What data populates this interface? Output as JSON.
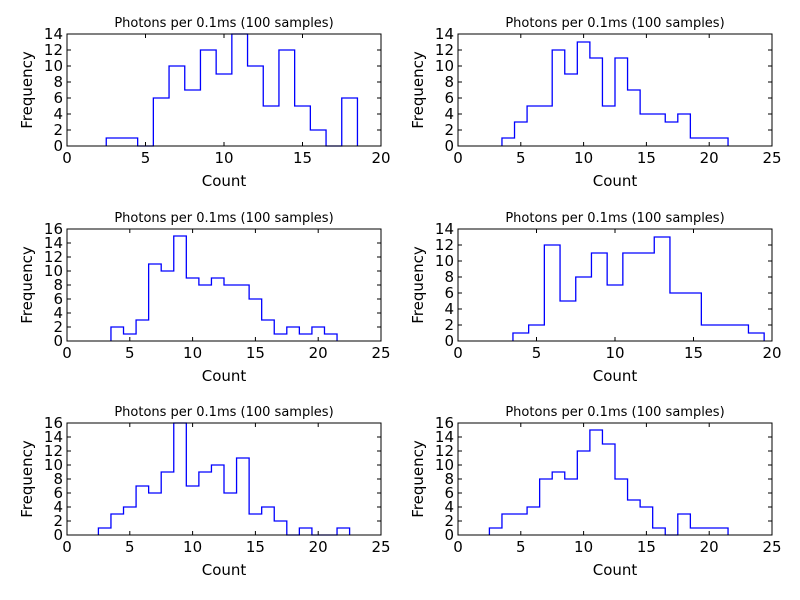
{
  "chart_data": [
    {
      "type": "histogram",
      "title": "Photons per 0.1ms (100 samples)",
      "xlabel": "Count",
      "ylabel": "Frequency",
      "xlim": [
        0,
        20
      ],
      "ylim": [
        0,
        14
      ],
      "xticks": [
        0,
        5,
        10,
        15,
        20
      ],
      "yticks": [
        0,
        2,
        4,
        6,
        8,
        10,
        12,
        14
      ],
      "bin_edges": [
        2.5,
        3.5,
        4.5,
        5.5,
        6.5,
        7.5,
        8.5,
        9.5,
        10.5,
        11.5,
        12.5,
        13.5,
        14.5,
        15.5,
        16.5,
        17.5,
        18.5
      ],
      "counts": [
        1,
        1,
        0,
        6,
        10,
        7,
        12,
        9,
        14,
        10,
        5,
        12,
        5,
        2,
        0,
        6
      ]
    },
    {
      "type": "histogram",
      "title": "Photons per 0.1ms (100 samples)",
      "xlabel": "Count",
      "ylabel": "Frequency",
      "xlim": [
        0,
        25
      ],
      "ylim": [
        0,
        14
      ],
      "xticks": [
        0,
        5,
        10,
        15,
        20,
        25
      ],
      "yticks": [
        0,
        2,
        4,
        6,
        8,
        10,
        12,
        14
      ],
      "bin_edges": [
        3.5,
        4.5,
        5.5,
        6.5,
        7.5,
        8.5,
        9.5,
        10.5,
        11.5,
        12.5,
        13.5,
        14.5,
        15.5,
        16.5,
        17.5,
        18.5,
        19.5,
        20.5,
        21.5
      ],
      "counts": [
        1,
        3,
        5,
        5,
        12,
        9,
        13,
        11,
        5,
        11,
        7,
        4,
        4,
        3,
        4,
        1,
        1,
        1
      ]
    },
    {
      "type": "histogram",
      "title": "Photons per 0.1ms (100 samples)",
      "xlabel": "Count",
      "ylabel": "Frequency",
      "xlim": [
        0,
        25
      ],
      "ylim": [
        0,
        16
      ],
      "xticks": [
        0,
        5,
        10,
        15,
        20,
        25
      ],
      "yticks": [
        0,
        2,
        4,
        6,
        8,
        10,
        12,
        14,
        16
      ],
      "bin_edges": [
        3.5,
        4.5,
        5.5,
        6.5,
        7.5,
        8.5,
        9.5,
        10.5,
        11.5,
        12.5,
        13.5,
        14.5,
        15.5,
        16.5,
        17.5,
        18.5,
        19.5,
        20.5,
        21.5
      ],
      "counts": [
        2,
        1,
        3,
        11,
        10,
        15,
        9,
        8,
        9,
        8,
        8,
        6,
        3,
        1,
        2,
        1,
        2,
        1
      ]
    },
    {
      "type": "histogram",
      "title": "Photons per 0.1ms (100 samples)",
      "xlabel": "Count",
      "ylabel": "Frequency",
      "xlim": [
        0,
        20
      ],
      "ylim": [
        0,
        14
      ],
      "xticks": [
        0,
        5,
        10,
        15,
        20
      ],
      "yticks": [
        0,
        2,
        4,
        6,
        8,
        10,
        12,
        14
      ],
      "bin_edges": [
        3.5,
        4.5,
        5.5,
        6.5,
        7.5,
        8.5,
        9.5,
        10.5,
        11.5,
        12.5,
        13.5,
        14.5,
        15.5,
        16.5,
        17.5,
        18.5,
        19.5
      ],
      "counts": [
        1,
        2,
        12,
        5,
        8,
        11,
        7,
        11,
        11,
        13,
        6,
        6,
        2,
        2,
        2,
        1
      ]
    },
    {
      "type": "histogram",
      "title": "Photons per 0.1ms (100 samples)",
      "xlabel": "Count",
      "ylabel": "Frequency",
      "xlim": [
        0,
        25
      ],
      "ylim": [
        0,
        16
      ],
      "xticks": [
        0,
        5,
        10,
        15,
        20,
        25
      ],
      "yticks": [
        0,
        2,
        4,
        6,
        8,
        10,
        12,
        14,
        16
      ],
      "bin_edges": [
        2.5,
        3.5,
        4.5,
        5.5,
        6.5,
        7.5,
        8.5,
        9.5,
        10.5,
        11.5,
        12.5,
        13.5,
        14.5,
        15.5,
        16.5,
        17.5,
        18.5,
        19.5,
        20.5,
        21.5,
        22.5
      ],
      "counts": [
        1,
        3,
        4,
        7,
        6,
        9,
        16,
        7,
        9,
        10,
        6,
        11,
        3,
        4,
        2,
        0,
        1,
        0,
        0,
        1
      ]
    },
    {
      "type": "histogram",
      "title": "Photons per 0.1ms (100 samples)",
      "xlabel": "Count",
      "ylabel": "Frequency",
      "xlim": [
        0,
        25
      ],
      "ylim": [
        0,
        16
      ],
      "xticks": [
        0,
        5,
        10,
        15,
        20,
        25
      ],
      "yticks": [
        0,
        2,
        4,
        6,
        8,
        10,
        12,
        14,
        16
      ],
      "bin_edges": [
        2.5,
        3.5,
        4.5,
        5.5,
        6.5,
        7.5,
        8.5,
        9.5,
        10.5,
        11.5,
        12.5,
        13.5,
        14.5,
        15.5,
        16.5,
        17.5,
        18.5,
        19.5,
        20.5,
        21.5
      ],
      "counts": [
        1,
        3,
        3,
        4,
        8,
        9,
        8,
        12,
        15,
        13,
        8,
        5,
        4,
        1,
        0,
        3,
        1,
        1,
        1
      ]
    }
  ],
  "colors": {
    "series": "#0000ff",
    "axes": "#000000",
    "background": "#ffffff"
  }
}
